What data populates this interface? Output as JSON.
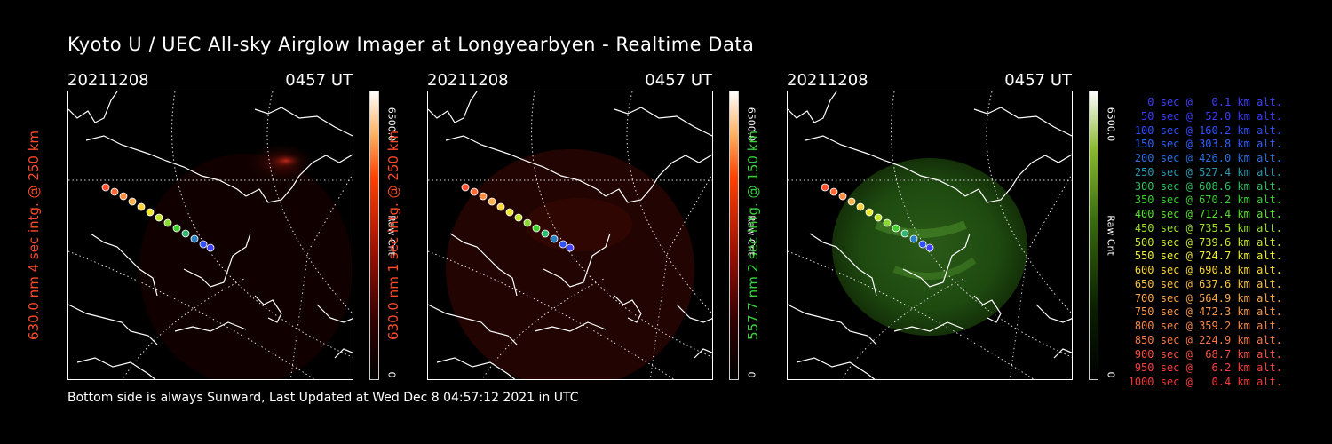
{
  "title": "Kyoto U / UEC All-sky Airglow Imager at Longyearbyen - Realtime Data",
  "footer": "Bottom side is always Sunward, Last Updated at Wed Dec  8 04:57:12 2021 in UTC",
  "panels": [
    {
      "date": "20211208",
      "time": "0457 UT",
      "ylabel": "630.0 nm 4 sec intg. @ 250 km",
      "ylabel_color": "#ff4a2a",
      "cbar_max": "6500.0",
      "cbar_unit": "Raw Cnt",
      "cbar_min": "0",
      "colormap": "red"
    },
    {
      "date": "20211208",
      "time": "0457 UT",
      "ylabel": "630.0 nm 1 sec intg. @ 250 km",
      "ylabel_color": "#ff4a2a",
      "cbar_max": "6500.0",
      "cbar_unit": "Raw Cnt",
      "cbar_min": "0",
      "colormap": "red"
    },
    {
      "date": "20211208",
      "time": "0457 UT",
      "ylabel": "557.7 nm 2 sec intg. @ 150 km",
      "ylabel_color": "#38d23a",
      "cbar_max": "6500.0",
      "cbar_unit": "Raw Cnt",
      "cbar_min": "0",
      "colormap": "green"
    }
  ],
  "legend": [
    {
      "text": "0 sec @   0.1 km alt.",
      "color": "#4040ff"
    },
    {
      "text": "50 sec @  52.0 km alt.",
      "color": "#3a3aff"
    },
    {
      "text": "100 sec @ 160.2 km alt.",
      "color": "#3050ff"
    },
    {
      "text": "150 sec @ 303.8 km alt.",
      "color": "#3060ff"
    },
    {
      "text": "200 sec @ 426.0 km alt.",
      "color": "#2a70e0"
    },
    {
      "text": "250 sec @ 527.4 km alt.",
      "color": "#2a9ab0"
    },
    {
      "text": "300 sec @ 608.6 km alt.",
      "color": "#30c060"
    },
    {
      "text": "350 sec @ 670.2 km alt.",
      "color": "#3ad030"
    },
    {
      "text": "400 sec @ 712.4 km alt.",
      "color": "#5ae030"
    },
    {
      "text": "450 sec @ 735.5 km alt.",
      "color": "#9ae030"
    },
    {
      "text": "500 sec @ 739.6 km alt.",
      "color": "#c8e830"
    },
    {
      "text": "550 sec @ 724.7 km alt.",
      "color": "#f0f030"
    },
    {
      "text": "600 sec @ 690.8 km alt.",
      "color": "#f8d830"
    },
    {
      "text": "650 sec @ 637.6 km alt.",
      "color": "#f8c040"
    },
    {
      "text": "700 sec @ 564.9 km alt.",
      "color": "#f8a848"
    },
    {
      "text": "750 sec @ 472.3 km alt.",
      "color": "#f89848"
    },
    {
      "text": "800 sec @ 359.2 km alt.",
      "color": "#f88848"
    },
    {
      "text": "850 sec @ 224.9 km alt.",
      "color": "#f87848"
    },
    {
      "text": "900 sec @  68.7 km alt.",
      "color": "#f85040"
    },
    {
      "text": "950 sec @   6.2 km alt.",
      "color": "#f84040"
    },
    {
      "text": "1000 sec @   0.4 km alt.",
      "color": "#f83838"
    }
  ]
}
